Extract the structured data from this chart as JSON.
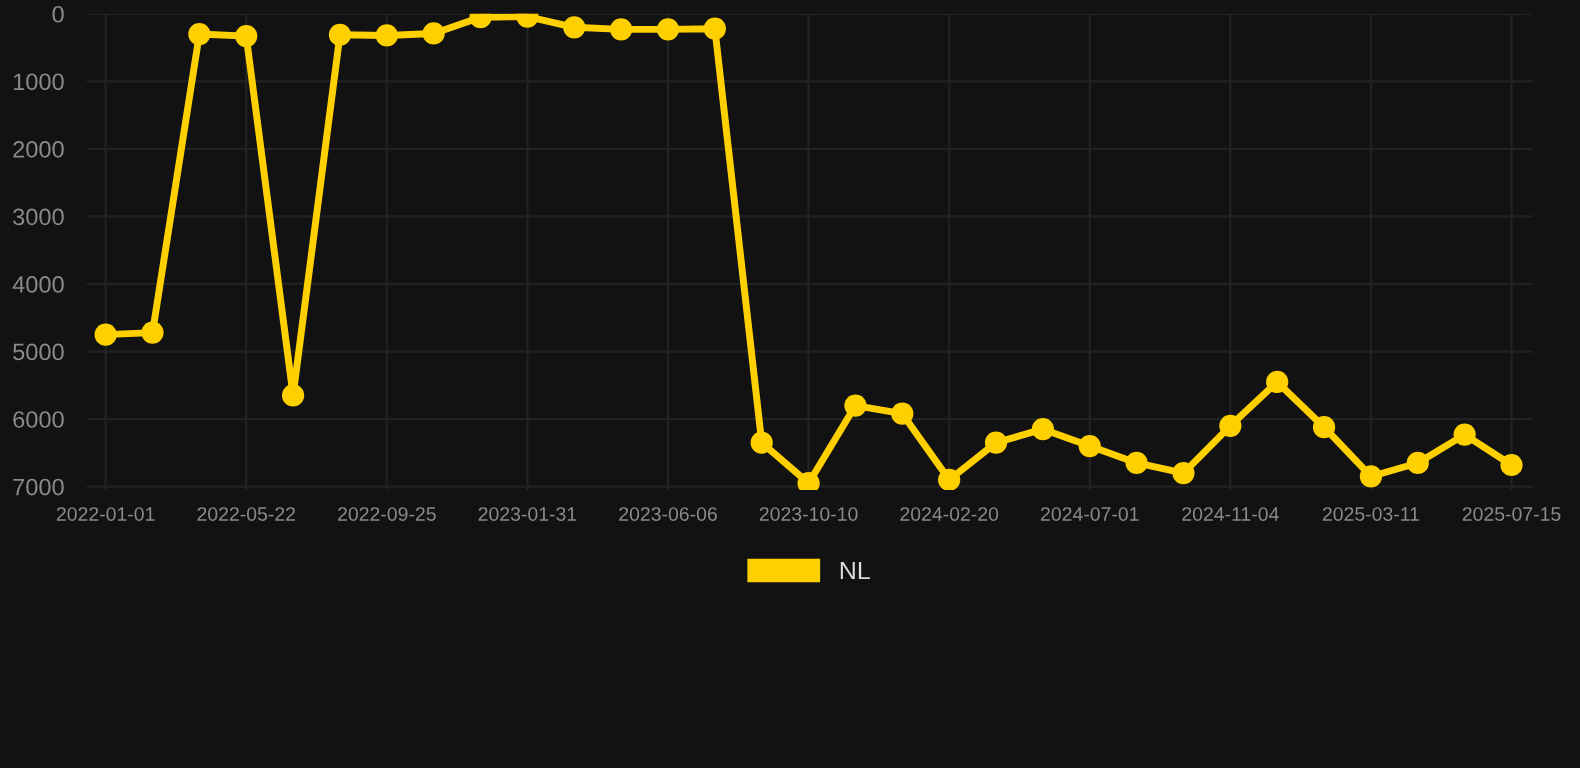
{
  "chart_data": {
    "type": "line",
    "categories": [
      "2022-01-01",
      null,
      null,
      "2022-05-22",
      null,
      null,
      "2022-09-25",
      null,
      null,
      "2023-01-31",
      null,
      null,
      "2023-06-06",
      null,
      null,
      "2023-10-10",
      null,
      null,
      "2024-02-20",
      null,
      null,
      "2024-07-01",
      null,
      null,
      "2024-11-04",
      null,
      null,
      "2025-03-11",
      null,
      null,
      "2025-07-15"
    ],
    "series": [
      {
        "name": "NL",
        "color": "#ffd000",
        "values": [
          4750,
          4720,
          300,
          330,
          5650,
          310,
          320,
          290,
          50,
          40,
          200,
          230,
          230,
          220,
          6350,
          6950,
          5800,
          5920,
          6900,
          6350,
          6150,
          6400,
          6650,
          6800,
          6100,
          5450,
          6120,
          6850,
          6650,
          6230,
          6680
        ]
      }
    ],
    "ylim": [
      7050,
      0
    ],
    "yticks": [
      0,
      1000,
      2000,
      3000,
      4000,
      5000,
      6000,
      7000
    ],
    "grid": true,
    "legend": "bottom",
    "marker": "circle",
    "line_style": "solid"
  }
}
